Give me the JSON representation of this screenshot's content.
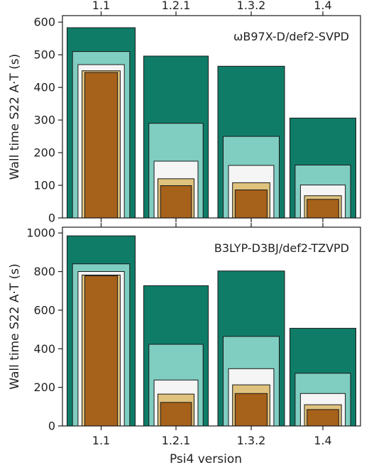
{
  "chart_data": [
    {
      "type": "bar",
      "title": "ωB97X-D/def2-SVPD",
      "ylabel": "Wall time S22 A·T (s)",
      "ylim": [
        0,
        620
      ],
      "yticks": [
        0,
        100,
        200,
        300,
        400,
        500,
        600
      ],
      "categories": [
        "1.1",
        "1.2.1",
        "1.3.2",
        "1.4"
      ],
      "top_tick_labels": [
        "1.1",
        "1.2.1",
        "1.3.2",
        "1.4"
      ],
      "series": [
        {
          "color": "#0f7c68",
          "values": [
            583,
            496,
            465,
            306
          ]
        },
        {
          "color": "#80cdc1",
          "values": [
            510,
            290,
            250,
            162
          ]
        },
        {
          "color": "#f5f5f5",
          "values": [
            470,
            174,
            161,
            101
          ]
        },
        {
          "color": "#dfc27d",
          "values": [
            451,
            120,
            108,
            68
          ]
        },
        {
          "color": "#a6611a",
          "values": [
            446,
            99,
            86,
            57
          ]
        }
      ]
    },
    {
      "type": "bar",
      "title": "B3LYP-D3BJ/def2-TZVPD",
      "ylabel": "Wall time S22 A·T (s)",
      "xlabel": "Psi4 version",
      "ylim": [
        0,
        1030
      ],
      "yticks": [
        0,
        200,
        400,
        600,
        800,
        1000
      ],
      "categories": [
        "1.1",
        "1.2.1",
        "1.3.2",
        "1.4"
      ],
      "series": [
        {
          "color": "#0f7c68",
          "values": [
            985,
            727,
            803,
            506
          ]
        },
        {
          "color": "#80cdc1",
          "values": [
            840,
            423,
            464,
            273
          ]
        },
        {
          "color": "#f5f5f5",
          "values": [
            800,
            238,
            297,
            168
          ]
        },
        {
          "color": "#dfc27d",
          "values": [
            782,
            165,
            213,
            110
          ]
        },
        {
          "color": "#a6611a",
          "values": [
            778,
            122,
            168,
            85
          ]
        }
      ]
    }
  ]
}
